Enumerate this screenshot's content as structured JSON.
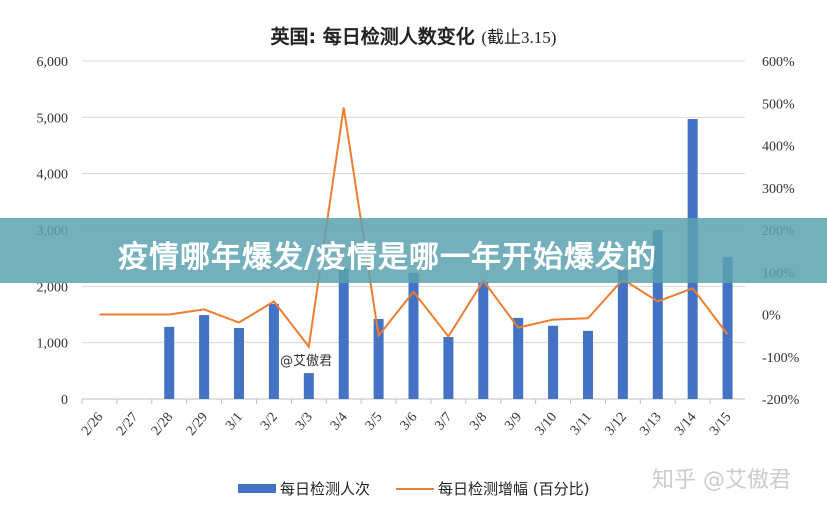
{
  "chart_data": {
    "type": "bar+line",
    "title": "英国: 每日检测人数变化",
    "subtitle": "(截止3.15)",
    "categories": [
      "2/26",
      "2/27",
      "2/28",
      "2/29",
      "3/1",
      "3/2",
      "3/3",
      "3/4",
      "3/5",
      "3/6",
      "3/7",
      "3/8",
      "3/9",
      "3/10",
      "3/11",
      "3/12",
      "3/13",
      "3/14",
      "3/15"
    ],
    "series": [
      {
        "name": "每日检测人次",
        "type": "bar",
        "axis": "left",
        "color": "#4472c4",
        "values": [
          null,
          null,
          1280,
          1490,
          1260,
          1690,
          460,
          2330,
          1420,
          2240,
          1100,
          2080,
          1440,
          1300,
          1210,
          2290,
          3000,
          4970,
          2520
        ]
      },
      {
        "name": "每日检测增幅 (百分比)",
        "type": "line",
        "axis": "right",
        "color": "#ed7d31",
        "values": [
          0,
          0,
          0,
          12,
          -19,
          31,
          -76,
          490,
          -50,
          54,
          -52,
          80,
          -31,
          -12,
          -9,
          83,
          31,
          62,
          -47
        ]
      }
    ],
    "left_axis": {
      "ylim": [
        0,
        6000
      ],
      "ticks": [
        "0",
        "1,000",
        "2,000",
        "3,000",
        "4,000",
        "5,000",
        "6,000"
      ]
    },
    "right_axis": {
      "ylim": [
        -200,
        600
      ],
      "ticks": [
        "-200%",
        "-100%",
        "0%",
        "100%",
        "200%",
        "300%",
        "400%",
        "500%",
        "600%"
      ]
    },
    "grid": true,
    "legend": "bottom"
  },
  "overlay": {
    "banner": "疫情哪年爆发/疫情是哪一年开始爆发的",
    "watermark": "@艾傲君",
    "source_mark": "知乎 @艾傲君"
  }
}
